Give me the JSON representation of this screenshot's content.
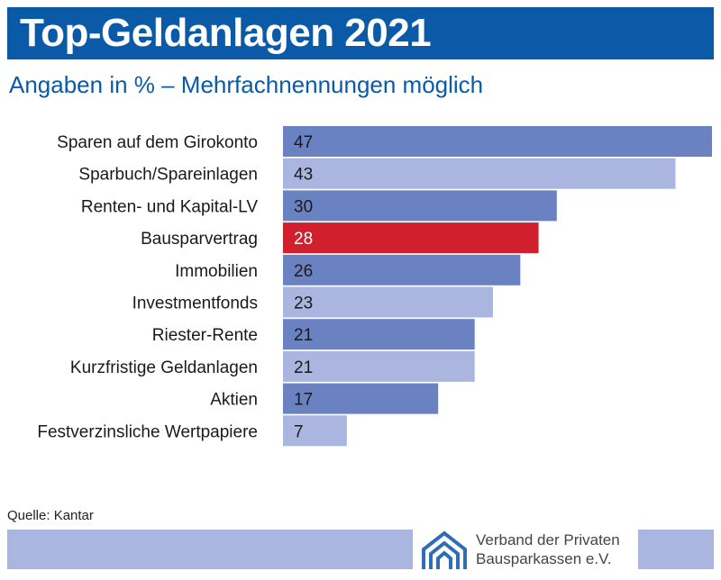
{
  "header": {
    "title": "Top-Geldanlagen 2021",
    "subtitle": "Angaben in % – Mehrfachnennungen möglich"
  },
  "chart_data": {
    "type": "bar",
    "orientation": "horizontal",
    "categories": [
      "Sparen auf dem Girokonto",
      "Sparbuch/Spareinlagen",
      "Renten- und Kapital-LV",
      "Bausparvertrag",
      "Immobilien",
      "Investmentfonds",
      "Riester-Rente",
      "Kurzfristige Geldanlagen",
      "Aktien",
      "Festverzinsliche Wertpapiere"
    ],
    "values": [
      47,
      43,
      30,
      28,
      26,
      23,
      21,
      21,
      17,
      7
    ],
    "title": "Top-Geldanlagen 2021",
    "xlim": [
      0,
      47
    ],
    "grid": false,
    "legend": "none",
    "colors": {
      "dark": "#6a82c2",
      "light": "#aab6df",
      "highlight": "#d0202e"
    },
    "highlight_category": "Bausparvertrag"
  },
  "footer": {
    "source": "Quelle: Kantar",
    "logo_line1": "Verband der Privaten",
    "logo_line2": "Bausparkassen e.V."
  },
  "icons": {
    "logo": "house-arches-logo-icon"
  }
}
